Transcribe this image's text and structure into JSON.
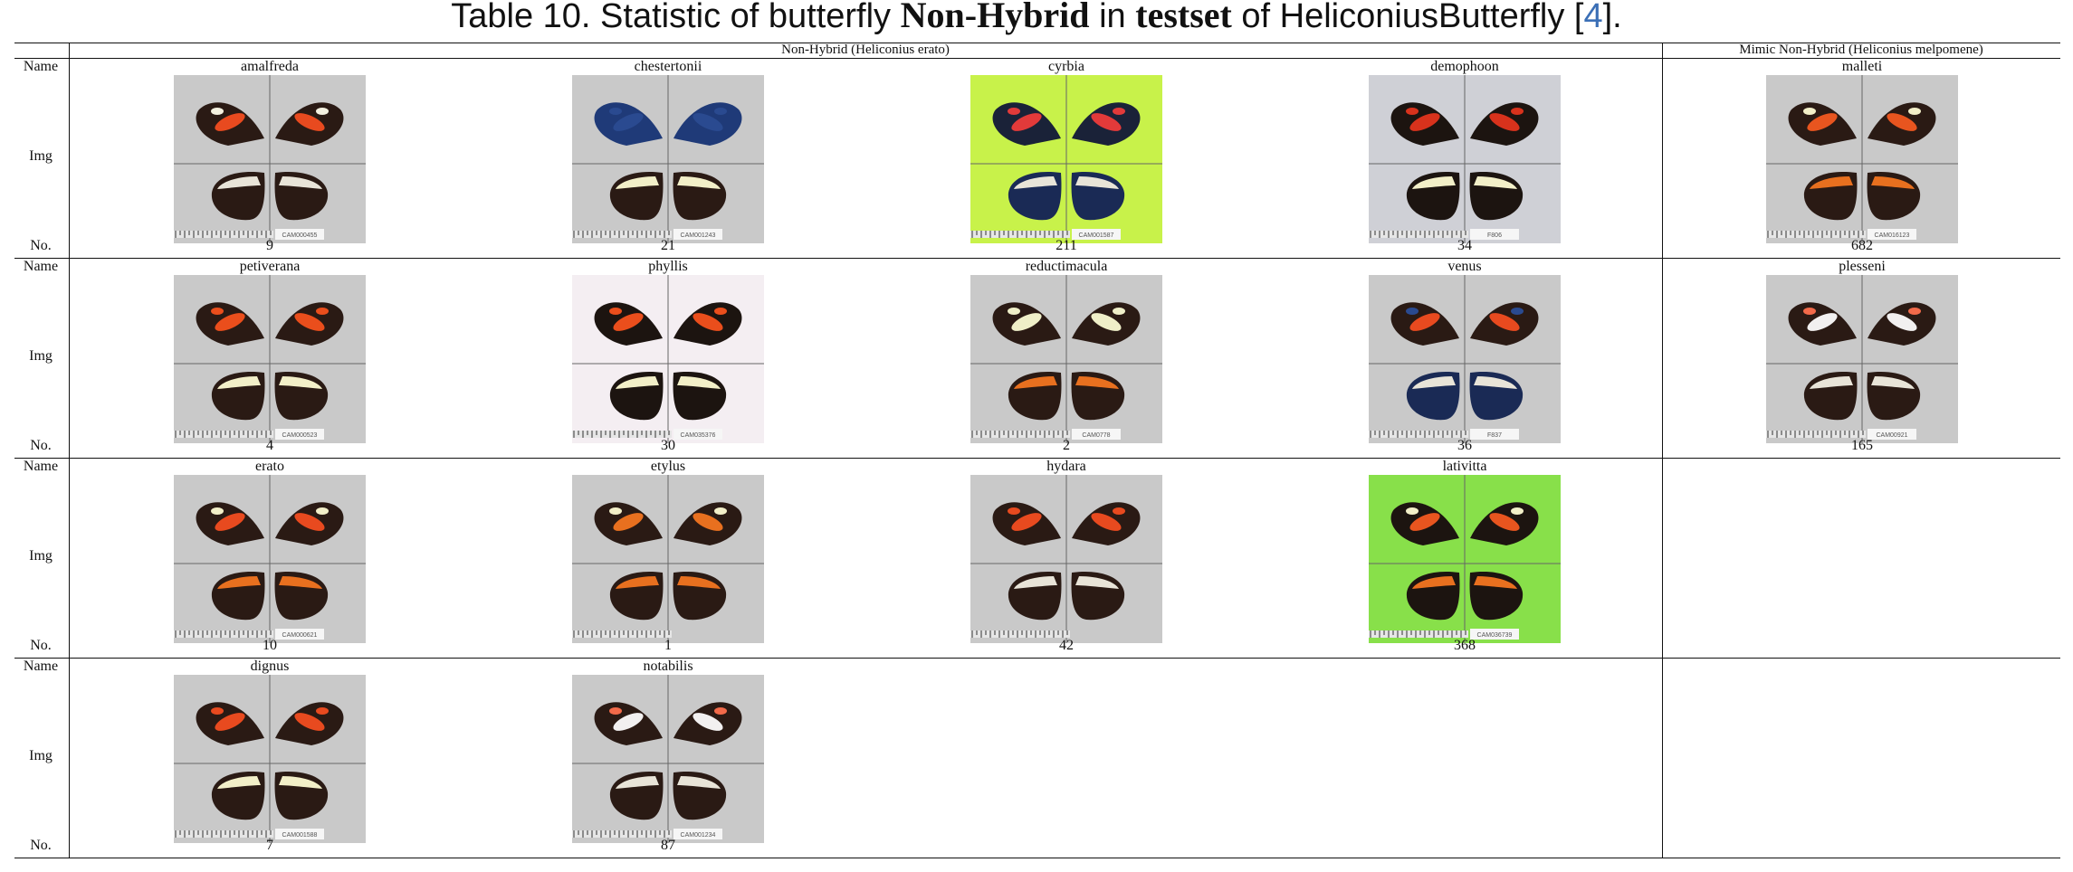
{
  "caption": {
    "prefix": "Table 10. Statistic of butterfly ",
    "bold1": "Non-Hybrid",
    "mid": " in ",
    "bold2": "testset",
    "after": " of HeliconiusButterfly [",
    "ref": "4",
    "end": "]."
  },
  "headers": {
    "group1": "Non-Hybrid (Heliconius erato)",
    "group2": "Mimic Non-Hybrid (Heliconius melpomene)"
  },
  "row_labels": {
    "name": "Name",
    "img": "Img",
    "no": "No."
  },
  "rows": [
    [
      {
        "name": "amalfreda",
        "no": "9",
        "bg": "gray",
        "tag": "CAM000455",
        "fw": "#2a1a14",
        "patch": "#e84a1f",
        "patch2": "#f3f1e0",
        "hw": "#2a1a14",
        "band": "#e8e4d8"
      },
      {
        "name": "chestertonii",
        "no": "21",
        "bg": "gray",
        "tag": "CAM001243",
        "fw": "#1f3a78",
        "patch": "#2a4a90",
        "patch2": "#2a4a90",
        "hw": "#2a1a14",
        "band": "#f2efc8"
      },
      {
        "name": "cyrbia",
        "no": "211",
        "bg": "lime",
        "tag": "CAM001587",
        "fw": "#1a2238",
        "patch": "#e23a3a",
        "patch2": "#e23a3a",
        "hw": "#1a2a55",
        "band": "#e8e4d8"
      },
      {
        "name": "demophoon",
        "no": "34",
        "bg": "lightgray",
        "tag": "F806",
        "fw": "#1c1410",
        "patch": "#d8321c",
        "patch2": "#d8321c",
        "hw": "#1c1410",
        "band": "#f2efc8"
      },
      {
        "name": "malleti",
        "no": "682",
        "bg": "gray",
        "tag": "CAM016123",
        "fw": "#2a1a14",
        "patch": "#e8551f",
        "patch2": "#f2efc8",
        "hw": "#2a1a14",
        "band": "#e8701f"
      }
    ],
    [
      {
        "name": "petiverana",
        "no": "4",
        "bg": "gray",
        "tag": "CAM000523",
        "fw": "#2a1a14",
        "patch": "#ea4e1c",
        "patch2": "#ea4e1c",
        "hw": "#2a1a14",
        "band": "#f2efc8"
      },
      {
        "name": "phyllis",
        "no": "30",
        "bg": "white",
        "tag": "CAM035376",
        "fw": "#1c1410",
        "patch": "#ea4e1c",
        "patch2": "#ea4e1c",
        "hw": "#1c1410",
        "band": "#f2efc8"
      },
      {
        "name": "reductimacula",
        "no": "2",
        "bg": "gray",
        "tag": "CAM0778",
        "fw": "#2a1a14",
        "patch": "#efefc8",
        "patch2": "#efefc8",
        "hw": "#2a1a14",
        "band": "#e8701f"
      },
      {
        "name": "venus",
        "no": "36",
        "bg": "gray",
        "tag": "F837",
        "fw": "#2a1a14",
        "patch": "#e84a1f",
        "patch2": "#2a4a90",
        "hw": "#1a2a55",
        "band": "#e8e4d8"
      },
      {
        "name": "plesseni",
        "no": "165",
        "bg": "gray",
        "tag": "CAM00921",
        "fw": "#2a1a14",
        "patch": "#f2f0f0",
        "patch2": "#f26a4a",
        "hw": "#2a1a14",
        "band": "#e8e4d8"
      }
    ],
    [
      {
        "name": "erato",
        "no": "10",
        "bg": "gray",
        "tag": "CAM000621",
        "fw": "#2a1a14",
        "patch": "#e84a1f",
        "patch2": "#f2efc8",
        "hw": "#2a1a14",
        "band": "#e8701f"
      },
      {
        "name": "etylus",
        "no": "1",
        "bg": "gray",
        "tag": "",
        "fw": "#2a1a14",
        "patch": "#e8701f",
        "patch2": "#f2efc8",
        "hw": "#2a1a14",
        "band": "#e8701f"
      },
      {
        "name": "hydara",
        "no": "42",
        "bg": "gray",
        "tag": "",
        "fw": "#2a1a14",
        "patch": "#e84a1f",
        "patch2": "#e84a1f",
        "hw": "#2a1a14",
        "band": "#e8e4d8"
      },
      {
        "name": "lativitta",
        "no": "368",
        "bg": "green",
        "tag": "CAM036739",
        "fw": "#1c1410",
        "patch": "#e8551f",
        "patch2": "#f2efc8",
        "hw": "#1c1410",
        "band": "#e8701f"
      },
      null
    ],
    [
      {
        "name": "dignus",
        "no": "7",
        "bg": "gray",
        "tag": "CAM001588",
        "fw": "#2a1a14",
        "patch": "#e84a1f",
        "patch2": "#e84a1f",
        "hw": "#2a1a14",
        "band": "#f2efc8"
      },
      {
        "name": "notabilis",
        "no": "87",
        "bg": "gray",
        "tag": "CAM001234",
        "fw": "#2a1a14",
        "patch": "#f2f0f0",
        "patch2": "#f26a4a",
        "hw": "#2a1a14",
        "band": "#e8e4d8"
      },
      null,
      null,
      null
    ]
  ]
}
